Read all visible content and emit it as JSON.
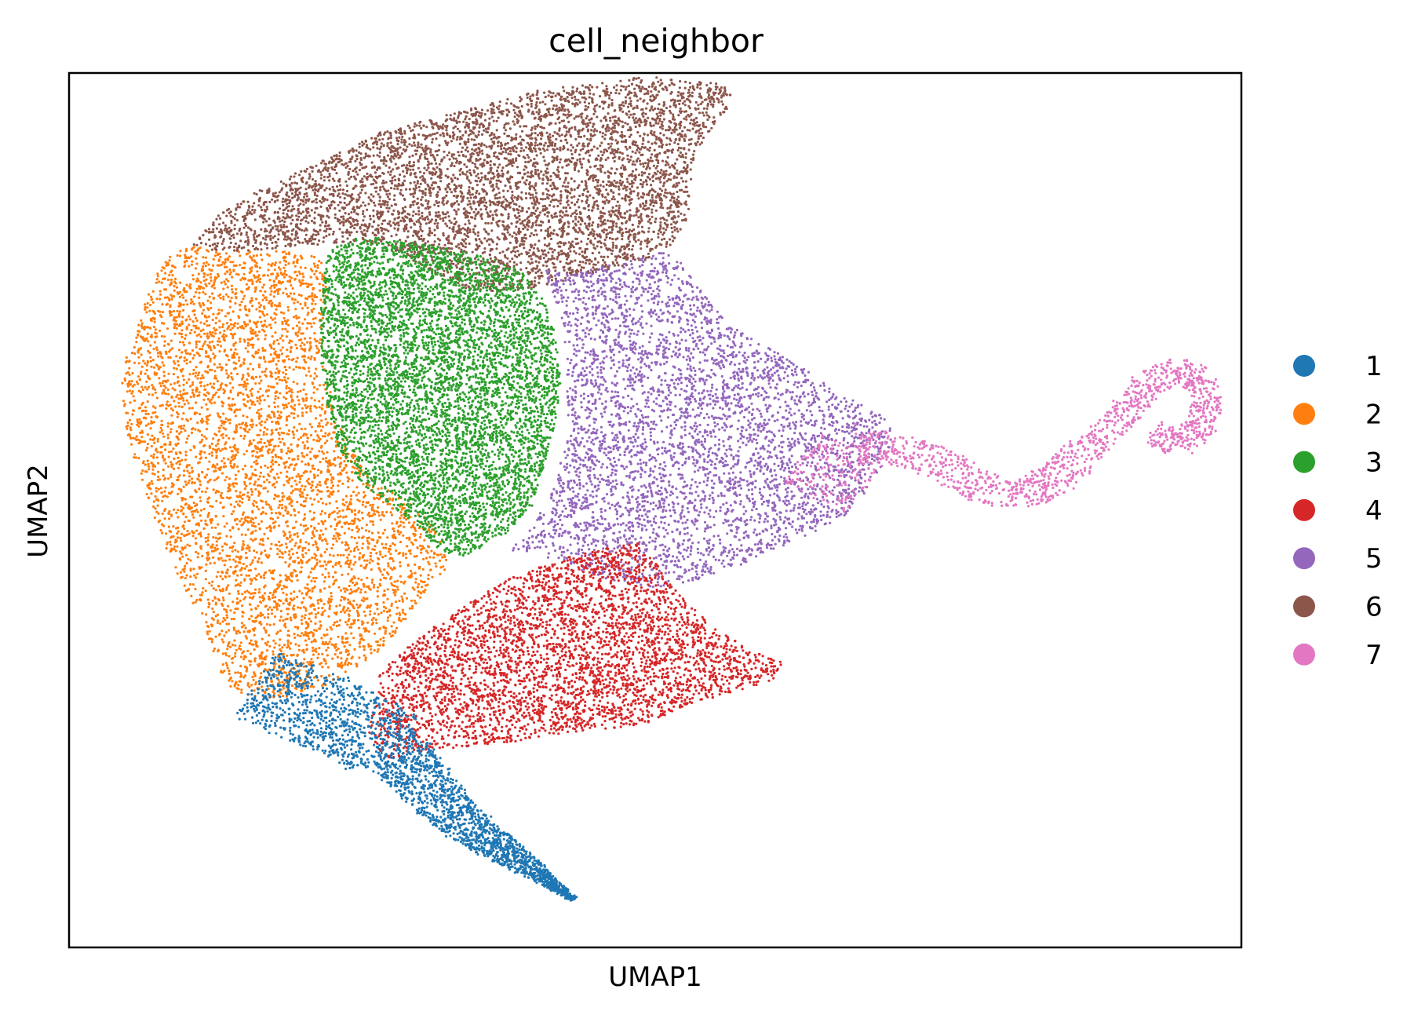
{
  "chart_data": {
    "type": "scatter",
    "title": "cell_neighbor",
    "xlabel": "UMAP1",
    "ylabel": "UMAP2",
    "xlim": [
      0,
      100
    ],
    "ylim": [
      0,
      100
    ],
    "ticks": "none",
    "grid": false,
    "legend_position": "right",
    "series": [
      {
        "name": "1",
        "color": "#1f77b4"
      },
      {
        "name": "2",
        "color": "#ff7f0e"
      },
      {
        "name": "3",
        "color": "#2ca02c"
      },
      {
        "name": "4",
        "color": "#d62728"
      },
      {
        "name": "5",
        "color": "#9467bd"
      },
      {
        "name": "6",
        "color": "#8c564b"
      },
      {
        "name": "7",
        "color": "#e377c2"
      }
    ]
  }
}
